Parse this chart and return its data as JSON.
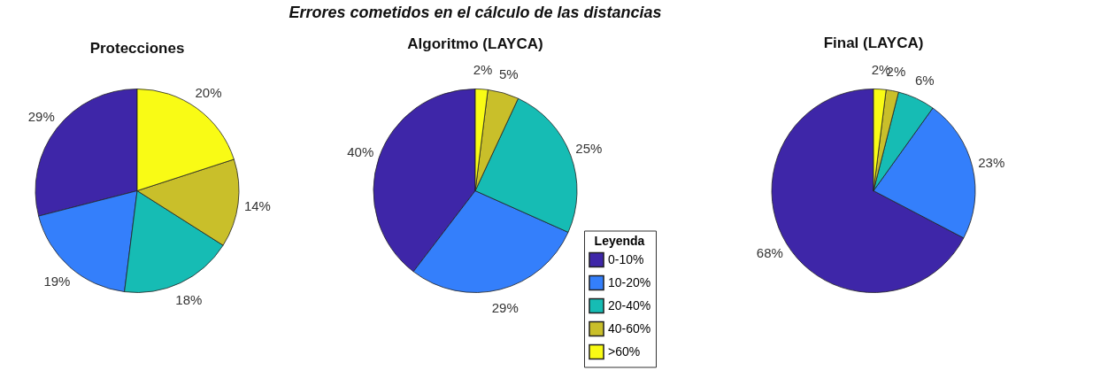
{
  "chart_data": [
    {
      "type": "pie",
      "subtitle": "Protecciones",
      "categories": [
        null,
        null,
        null,
        null,
        null
      ],
      "values": [
        29,
        19,
        18,
        14,
        20
      ],
      "value_labels": [
        "29%",
        "19%",
        "18%",
        "14%",
        "20%"
      ],
      "colors": [
        "#3e26a8",
        "#347ffb",
        "#16bcb4",
        "#c9bf2a",
        "#f9fb15"
      ]
    },
    {
      "type": "pie",
      "title": "Errores cometidos en el cálculo de las distancias",
      "subtitle": "Algoritmo (LAYCA)",
      "legend_title": "Leyenda",
      "legend": "bottom right",
      "categories": [
        "0-10%",
        "10-20%",
        "20-40%",
        "40-60%",
        ">60%"
      ],
      "values": [
        40,
        29,
        25,
        5,
        2
      ],
      "value_labels": [
        "40%",
        "29%",
        "25%",
        "5%",
        "2%"
      ],
      "colors": [
        "#3e26a8",
        "#347ffb",
        "#16bcb4",
        "#c9bf2a",
        "#f9fb15"
      ]
    },
    {
      "type": "pie",
      "subtitle": "Final (LAYCA)",
      "categories": [
        null,
        null,
        null,
        null,
        null
      ],
      "values": [
        68,
        23,
        6,
        2,
        2
      ],
      "value_labels": [
        "68%",
        "23%",
        "6%",
        "2%",
        "2%"
      ],
      "colors": [
        "#3e26a8",
        "#347ffb",
        "#16bcb4",
        "#c9bf2a",
        "#f9fb15"
      ]
    }
  ]
}
